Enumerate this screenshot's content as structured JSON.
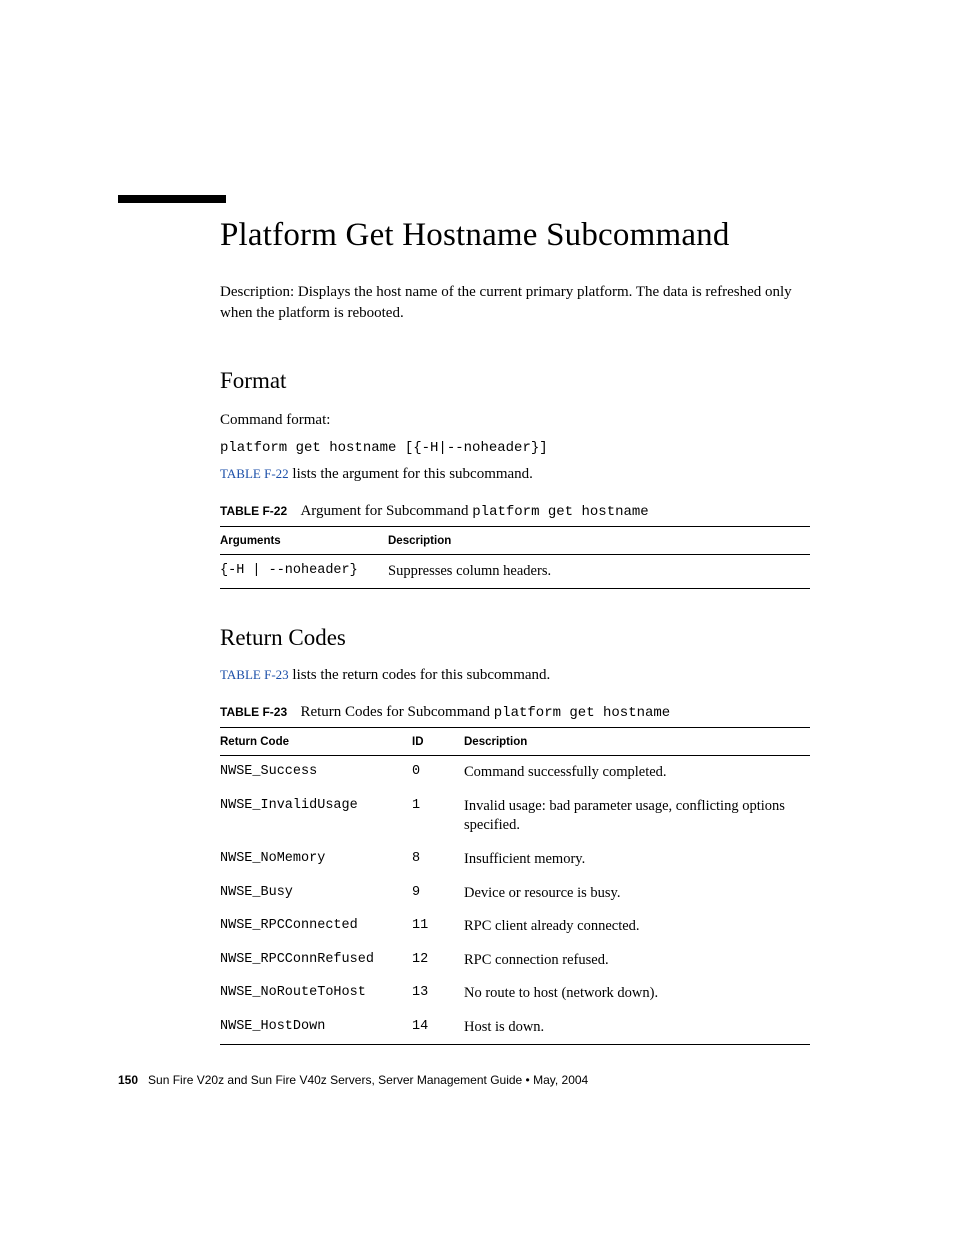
{
  "title": "Platform Get Hostname Subcommand",
  "description": "Description: Displays the host name of the current primary platform. The data is refreshed only when the platform is rebooted.",
  "format": {
    "heading": "Format",
    "label": "Command format:",
    "command": "platform get hostname [{-H|--noheader}]",
    "ref_link": "TABLE F-22",
    "ref_rest": " lists the argument for this subcommand."
  },
  "table1": {
    "caption_label": "TABLE F-22",
    "caption_text": "Argument for Subcommand ",
    "caption_code": "platform get hostname",
    "headers": {
      "c1": "Arguments",
      "c2": "Description"
    },
    "rows": [
      {
        "arg": "{-H | --noheader}",
        "desc": "Suppresses column headers."
      }
    ]
  },
  "return_codes": {
    "heading": "Return Codes",
    "ref_link": "TABLE F-23",
    "ref_rest": " lists the return codes for this subcommand."
  },
  "table2": {
    "caption_label": "TABLE F-23",
    "caption_text": "Return Codes for Subcommand ",
    "caption_code": "platform get hostname",
    "headers": {
      "c1": "Return Code",
      "c2": "ID",
      "c3": "Description"
    },
    "rows": [
      {
        "code": "NWSE_Success",
        "id": "0",
        "desc": "Command successfully completed."
      },
      {
        "code": "NWSE_InvalidUsage",
        "id": "1",
        "desc": "Invalid usage: bad parameter usage, conflicting options specified."
      },
      {
        "code": "NWSE_NoMemory",
        "id": "8",
        "desc": "Insufficient memory."
      },
      {
        "code": "NWSE_Busy",
        "id": "9",
        "desc": "Device or resource is busy."
      },
      {
        "code": "NWSE_RPCConnected",
        "id": "11",
        "desc": "RPC client already connected."
      },
      {
        "code": "NWSE_RPCConnRefused",
        "id": "12",
        "desc": "RPC connection refused."
      },
      {
        "code": "NWSE_NoRouteToHost",
        "id": "13",
        "desc": "No route to host (network down)."
      },
      {
        "code": "NWSE_HostDown",
        "id": "14",
        "desc": "Host is down."
      }
    ]
  },
  "footer": {
    "page_num": "150",
    "text": "Sun Fire V20z and Sun Fire V40z Servers, Server Management Guide • May, 2004"
  }
}
